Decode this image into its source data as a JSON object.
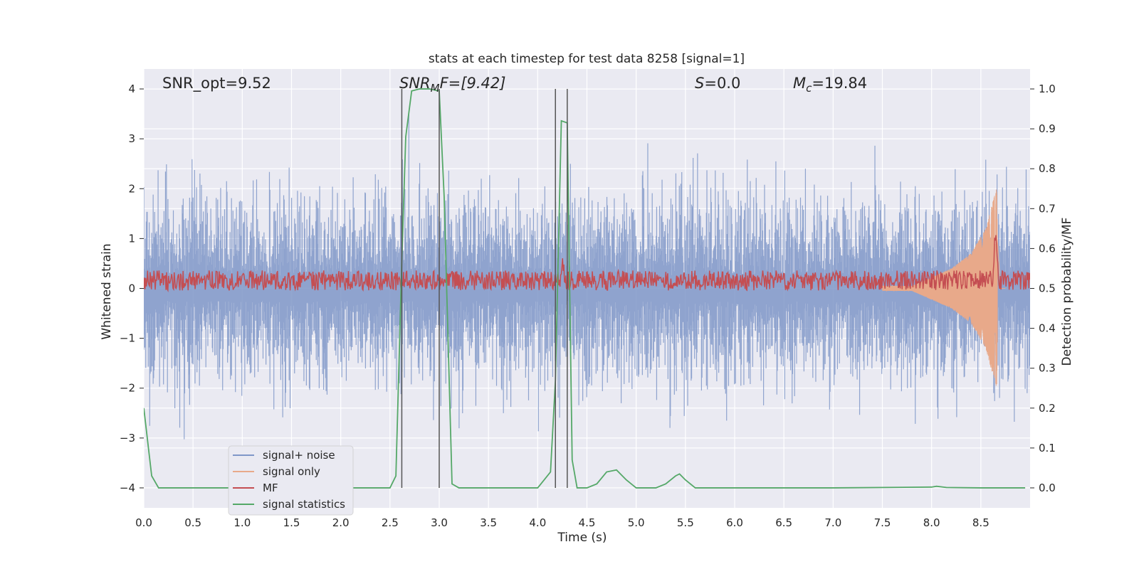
{
  "chart_data": {
    "type": "line",
    "title": "stats at each timestep for test data 8258 [signal=1]",
    "xlabel": "Time (s)",
    "ylabel_left": "Whitened strain",
    "ylabel_right": "Detection probability/MF",
    "xlim": [
      0,
      9.0
    ],
    "ylim_left": [
      -4.4,
      4.4
    ],
    "ylim_right": [
      -0.05,
      1.05
    ],
    "x_ticks": [
      "0.0",
      "0.5",
      "1.0",
      "1.5",
      "2.0",
      "2.5",
      "3.0",
      "3.5",
      "4.0",
      "4.5",
      "5.0",
      "5.5",
      "6.0",
      "6.5",
      "7.0",
      "7.5",
      "8.0",
      "8.5"
    ],
    "y_ticks_left": [
      "4",
      "3",
      "2",
      "1",
      "0",
      "−1",
      "−2",
      "−3",
      "−4"
    ],
    "y_ticks_right": [
      "1.0",
      "0.9",
      "0.8",
      "0.7",
      "0.6",
      "0.5",
      "0.4",
      "0.3",
      "0.2",
      "0.1",
      "0.0"
    ],
    "grid": true,
    "legend_placement": "lower-left",
    "annotations": {
      "snr_opt": "SNR_opt=9.52",
      "snr_mf_main": "SNR",
      "snr_mf_sub": "M",
      "snr_mf_rest": "F=[9.42]",
      "s_main": "S",
      "s_rest": "=0.0",
      "mc_main": "M",
      "mc_sub": "c",
      "mc_rest": "=19.84"
    },
    "vertical_lines_x": [
      2.62,
      3.0,
      4.18,
      4.3
    ],
    "series": [
      {
        "name": "signal+ noise",
        "color": "#7f97c8",
        "axis": "left",
        "description_stats": {
          "x_start": 0,
          "x_end": 9.0,
          "typical_peak_positive": 2.2,
          "typical_peak_negative": -2.2,
          "max": 3.5,
          "min": -3.6
        }
      },
      {
        "name": "signal only",
        "color": "#e8a98a",
        "axis": "left",
        "envelope": {
          "x": [
            0,
            7.8,
            8.2,
            8.4,
            8.55,
            8.63,
            8.66,
            8.7
          ],
          "amp": [
            0.0,
            0.05,
            0.4,
            0.7,
            1.2,
            1.8,
            2.0,
            0.0
          ]
        }
      },
      {
        "name": "MF",
        "color": "#c44e52",
        "axis": "right",
        "baseline": 0.52,
        "spread": 0.025,
        "peaks": [
          {
            "x": 8.65,
            "y": 0.63
          },
          {
            "x": 4.25,
            "y": 0.555
          }
        ]
      },
      {
        "name": "signal statistics",
        "color": "#55a868",
        "axis": "right",
        "x": [
          0.0,
          0.08,
          0.15,
          0.4,
          1.0,
          2.0,
          2.3,
          2.5,
          2.56,
          2.62,
          2.66,
          2.72,
          2.8,
          2.9,
          3.0,
          3.05,
          3.13,
          3.2,
          3.5,
          4.0,
          4.13,
          4.18,
          4.24,
          4.3,
          4.35,
          4.4,
          4.5,
          4.6,
          4.7,
          4.8,
          4.9,
          5.0,
          5.2,
          5.3,
          5.4,
          5.44,
          5.5,
          5.6,
          6.0,
          7.0,
          8.0,
          8.05,
          8.15,
          8.5,
          8.95
        ],
        "y": [
          0.2,
          0.03,
          0.0,
          0.0,
          0.0,
          0.0,
          0.0,
          0.0,
          0.03,
          0.57,
          0.88,
          0.995,
          1.0,
          1.0,
          0.995,
          0.73,
          0.01,
          0.0,
          0.0,
          0.0,
          0.04,
          0.27,
          0.92,
          0.915,
          0.07,
          0.0,
          0.0,
          0.01,
          0.04,
          0.045,
          0.02,
          0.0,
          0.0,
          0.01,
          0.03,
          0.035,
          0.02,
          0.0,
          0.0,
          0.0,
          0.002,
          0.004,
          0.001,
          0.0,
          0.0
        ]
      }
    ]
  }
}
